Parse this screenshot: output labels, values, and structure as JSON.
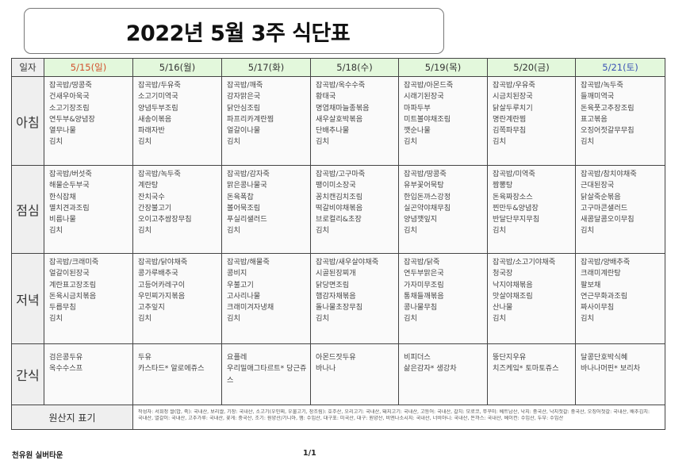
{
  "title": "2022년 5월 3주 식단표",
  "header": {
    "label": "일자",
    "days": [
      "5/15(일)",
      "5/16(월)",
      "5/17(화)",
      "5/18(수)",
      "5/19(목)",
      "5/20(금)",
      "5/21(토)"
    ]
  },
  "colors": {
    "sunday": "#d2502c",
    "saturday": "#3b52b5",
    "header_bg": "#e3f8dc"
  },
  "meals": [
    {
      "label": "아침",
      "days": [
        [
          "잡곡밥/땅콩죽",
          "건새우아욱국",
          "소고기장조림",
          "연두부&양념장",
          "열무나물",
          "김치"
        ],
        [
          "잡곡밥/두유죽",
          "소고기미역국",
          "양념두부조림",
          "새송이볶음",
          "파래자반",
          "김치"
        ],
        [
          "잡곡밥/깨죽",
          "감자맑은국",
          "닭안심조림",
          "파프리카계란찜",
          "얼갈이나물",
          "김치"
        ],
        [
          "잡곡밥/옥수수죽",
          "황태국",
          "명엽채마늘종볶음",
          "새우살호박볶음",
          "단배추나물",
          "김치"
        ],
        [
          "잡곡밥/아몬드죽",
          "시래기된장국",
          "마파두부",
          "미트볼야채조림",
          "깻순나물",
          "김치"
        ],
        [
          "잡곡밥/우유죽",
          "시금치된장국",
          "닭살두루치기",
          "명란계란찜",
          "김쪽파무침",
          "김치"
        ],
        [
          "잡곡밥/녹두죽",
          "들깨미역국",
          "돈육풋고추장조림",
          "표고볶음",
          "오징어젓갈무무침",
          "김치"
        ]
      ]
    },
    {
      "label": "점심",
      "days": [
        [
          "잡곡밥/버섯죽",
          "해물순두부국",
          "한식잡채",
          "멸치견과조림",
          "비름나물",
          "김치"
        ],
        [
          "잡곡밥/녹두죽",
          "계란탕",
          "잔치국수",
          "간장불고기",
          "오이고추쌈장무침",
          "김치"
        ],
        [
          "잡곡밥/감자죽",
          "맑은콩나물국",
          "돈육폭찹",
          "볼어묵조림",
          "푸실리샐러드",
          "김치"
        ],
        [
          "잡곡밥/고구마죽",
          "팽이미소장국",
          "꽁치캔김치조림",
          "떡갈비야채볶음",
          "브로컬리&초장",
          "김치"
        ],
        [
          "잡곡밥/땅콩죽",
          "유부꽃어묵탕",
          "한입돈까스강정",
          "실곤약야채무침",
          "양념깻잎지",
          "김치"
        ],
        [
          "잡곡밥/미역죽",
          "짬뽕탕",
          "돈육짜장소스",
          "찐만두&양념장",
          "반달단무지무침",
          "김치"
        ],
        [
          "잡곡밥/참치야채죽",
          "근대된장국",
          "닭살죽순볶음",
          "고구마콘샐러드",
          "새콤달콤오이무침",
          "김치"
        ]
      ]
    },
    {
      "label": "저녁",
      "days": [
        [
          "잡곡밥/크래미죽",
          "얼갈이된장국",
          "계란표고장조림",
          "돈육시금치볶음",
          "두릅무침",
          "김치"
        ],
        [
          "잡곡밥/닭야채죽",
          "콩가루배추국",
          "고등어카레구이",
          "우민찌가지볶음",
          "고추잎지",
          "김치"
        ],
        [
          "잡곡밥/해물죽",
          "콩비지",
          "우불고기",
          "고사리나물",
          "크래미겨자냉채",
          "김치"
        ],
        [
          "잡곡밥/새우살야채죽",
          "시골된장찌개",
          "닭당면조림",
          "햄감자채볶음",
          "돌나물초장무침",
          "김치"
        ],
        [
          "잡곡밥/닭죽",
          "연두부맑은국",
          "가자미무조림",
          "통채들깨볶음",
          "콩나물무침",
          "김치"
        ],
        [
          "잡곡밥/소고기야채죽",
          "청국장",
          "낙지야채볶음",
          "맛살야채조림",
          "산나물",
          "김치"
        ],
        [
          "잡곡밥/양배추죽",
          "크래미계란탕",
          "팔보채",
          "연근무화과조림",
          "짜사이무침",
          "김치"
        ]
      ]
    },
    {
      "label": "간식",
      "days": [
        [
          "검은콩두유",
          "옥수수스프"
        ],
        [
          "두유",
          "카스타드* 알로에쥬스"
        ],
        [
          "요플레",
          "우리밀애그타르트* 당근쥬",
          "스"
        ],
        [
          "아몬드잣두유",
          "바나나"
        ],
        [
          "비피더스",
          "삶은감자* 생강차"
        ],
        [
          "뚱단지우유",
          "치즈케잌* 토마토쥬스"
        ],
        [
          "달콩단호박식혜",
          "바나나머핀* 보리차"
        ]
      ]
    }
  ],
  "origin": {
    "label": "원산지 표기",
    "lines": [
      "작성자: 서희정 쌀(밥, 죽): 국내산, 보리쌀, 기장: 국내산, 소고기(우민찌, 우불고기, 장조림): 호주산, 오리고기: 국내산, 돼지고기: 국내산, 고등어: 국내산, 갈치: 모로코, 쭈꾸미: 베트남산, 낙지: 중국산, 낙지젓갈: 중국산, 오징어젓갈: 국내산, 배추김치:",
      "국내산, 열갈이: 국내산, 고추가루: 국내산, 꽃게: 중국산, 조기: 원양산/기니아, 햄: 수입산, 대구포: 미국산, 대구: 원양산, 비엔나소시지: 국내산, 너비아니: 국내산, 돈까스: 국내산, 베이컨: 수입산, 두부: 수입산"
    ]
  },
  "footer": {
    "organization": "천유원 실버타운",
    "page": "1/1"
  }
}
